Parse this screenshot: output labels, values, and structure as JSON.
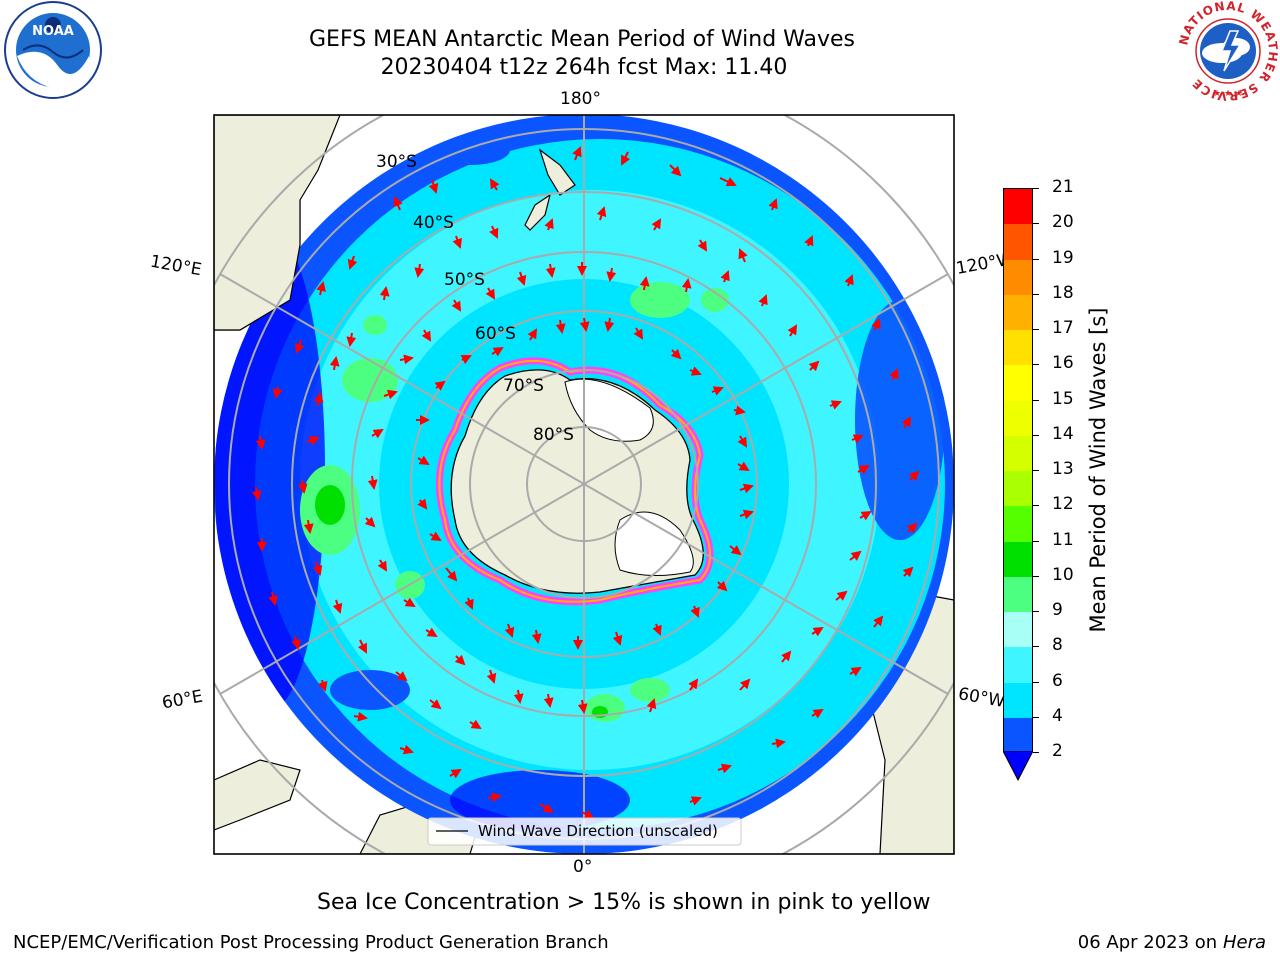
{
  "header": {
    "title_line1": "GEFS MEAN Antarctic Mean Period of Wind Waves",
    "title_line2": "20230404 t12z 264h fcst   Max: 11.40"
  },
  "logos": {
    "left": "noara-logo",
    "right": "national-weather-service-logo",
    "right_ring_text": "NATIONAL WEATHER SERVICE"
  },
  "map": {
    "lon_labels": {
      "top": "180°",
      "bottom": "0°",
      "upper_left": "120°E",
      "upper_right": "120°W",
      "lower_left": "60°E",
      "lower_right": "60°W"
    },
    "lat_labels": [
      "30°S",
      "40°S",
      "50°S",
      "60°S",
      "70°S",
      "80°S"
    ],
    "legend_label": "Wind Wave Direction (unscaled)"
  },
  "colorbar": {
    "label": "Mean Period of Wind Waves [s]",
    "ticks": [
      "2",
      "4",
      "6",
      "8",
      "9",
      "10",
      "11",
      "12",
      "13",
      "14",
      "15",
      "16",
      "17",
      "18",
      "19",
      "20",
      "21"
    ],
    "colors": [
      "#0a55ff",
      "#00e5ff",
      "#3ff5ff",
      "#a8fff5",
      "#4dff80",
      "#00e000",
      "#55ff00",
      "#aaff00",
      "#d4ff00",
      "#eeff00",
      "#ffff00",
      "#ffe000",
      "#ffb000",
      "#ff8c00",
      "#ff5500",
      "#ff0000"
    ],
    "extend_color": "#0000ff"
  },
  "note": "Sea Ice Concentration > 15% is shown in pink to yellow",
  "footer": {
    "left": "NCEP/EMC/Verification Post Processing Product Generation Branch",
    "right_date": "06 Apr 2023 on ",
    "right_machine": "Hera"
  }
}
